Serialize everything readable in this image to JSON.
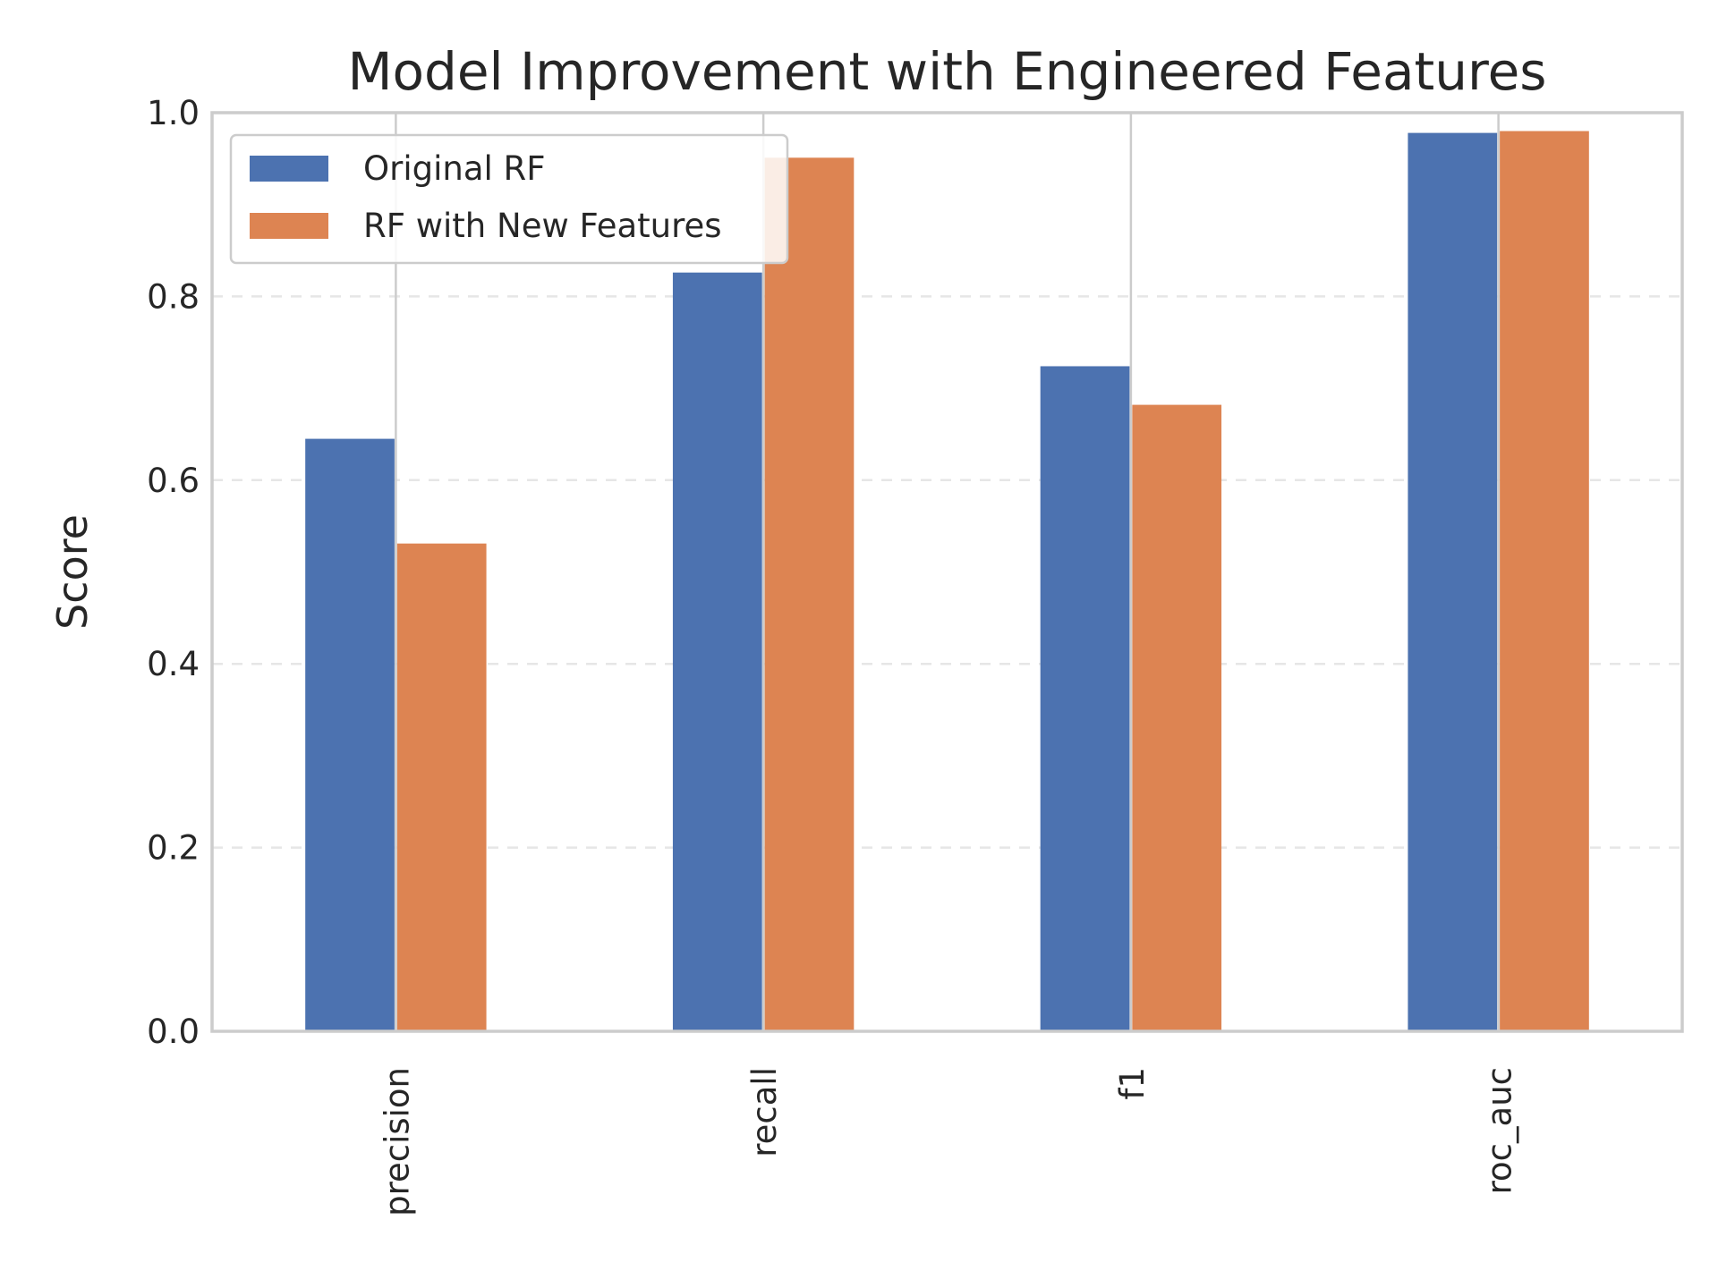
{
  "chart_data": {
    "type": "bar",
    "title": "Model Improvement with Engineered Features",
    "xlabel": "",
    "ylabel": "Score",
    "ylim": [
      0,
      1.0
    ],
    "yticks": [
      "0.0",
      "0.2",
      "0.4",
      "0.6",
      "0.8",
      "1.0"
    ],
    "categories": [
      "precision",
      "recall",
      "f1",
      "roc_auc"
    ],
    "series": [
      {
        "name": "Original RF",
        "color": "#4c72b0",
        "values": [
          0.645,
          0.826,
          0.724,
          0.978
        ]
      },
      {
        "name": "RF with New Features",
        "color": "#dd8452",
        "values": [
          0.531,
          0.951,
          0.682,
          0.98
        ]
      }
    ],
    "grid": true,
    "legend_position": "top-left"
  }
}
